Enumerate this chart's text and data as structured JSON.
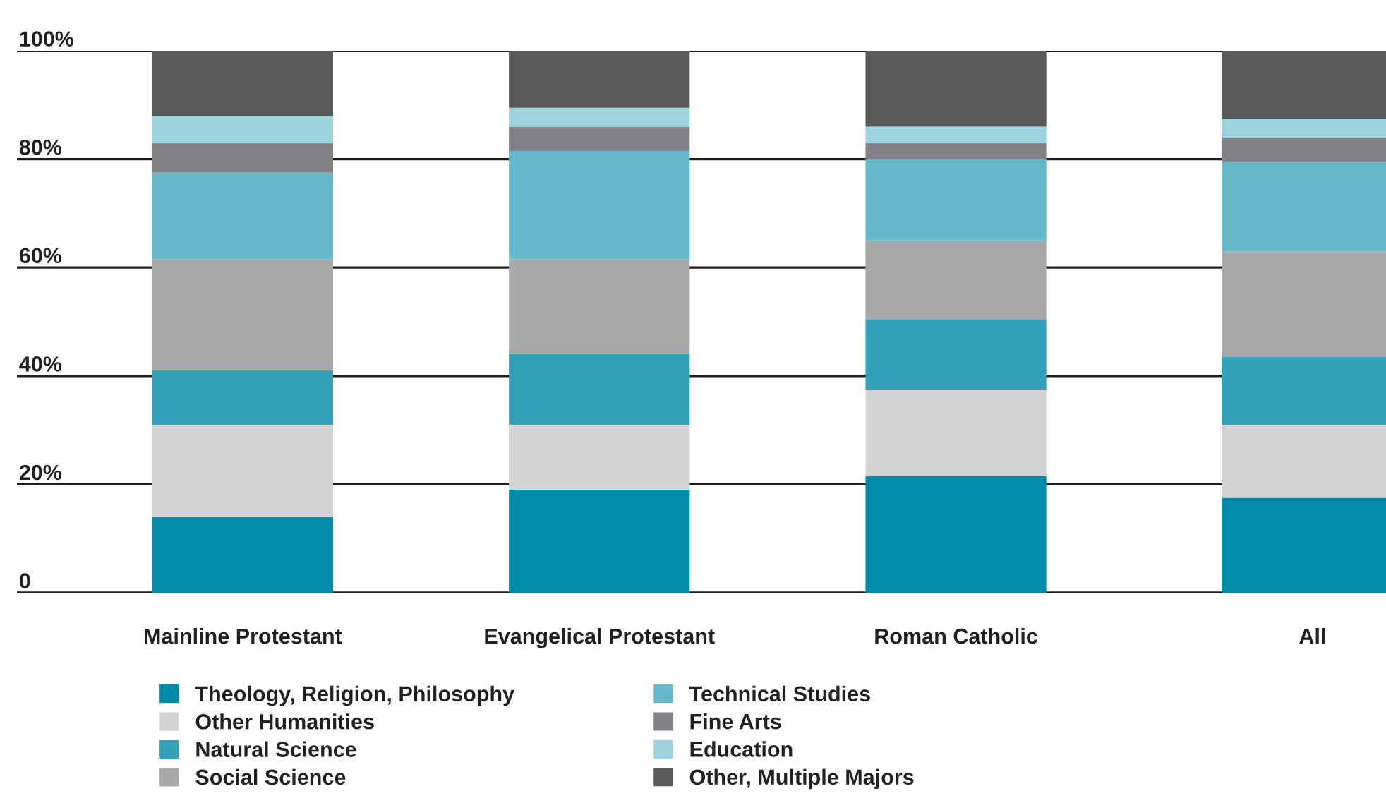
{
  "chart_data": {
    "type": "bar",
    "stacked": true,
    "categories": [
      "Mainline Protestant",
      "Evangelical Protestant",
      "Roman Catholic",
      "All"
    ],
    "series": [
      {
        "name": "Theology, Religion, Philosophy",
        "color": "#008ba8",
        "values": [
          14,
          19,
          21.5,
          17.5
        ]
      },
      {
        "name": "Other Humanities",
        "color": "#d1d3d4",
        "values": [
          17,
          12,
          16,
          13.5
        ]
      },
      {
        "name": "Natural Science",
        "color": "#33a1b9",
        "values": [
          10,
          13,
          13,
          12.5
        ]
      },
      {
        "name": "Social Science",
        "color": "#a7a9ab",
        "values": [
          20.5,
          17.5,
          14.5,
          19.5
        ]
      },
      {
        "name": "Technical Studies",
        "color": "#66b9cb",
        "values": [
          16,
          20,
          15,
          16.5
        ]
      },
      {
        "name": "Fine Arts",
        "color": "#808285",
        "values": [
          5.5,
          4.5,
          3,
          4.5
        ]
      },
      {
        "name": "Education",
        "color": "#9dd3de",
        "values": [
          5,
          3.5,
          3,
          3.5
        ]
      },
      {
        "name": "Other, Multiple Majors",
        "color": "#58595b",
        "values": [
          12,
          10.5,
          14,
          12.5
        ]
      }
    ],
    "ylim": [
      0,
      100
    ],
    "yticks": [
      {
        "value": 0,
        "label": "0"
      },
      {
        "value": 20,
        "label": "20%"
      },
      {
        "value": 40,
        "label": "40%"
      },
      {
        "value": 60,
        "label": "60%"
      },
      {
        "value": 80,
        "label": "80%"
      },
      {
        "value": 100,
        "label": "100%"
      }
    ],
    "grid": "y",
    "legend": "bottom"
  }
}
